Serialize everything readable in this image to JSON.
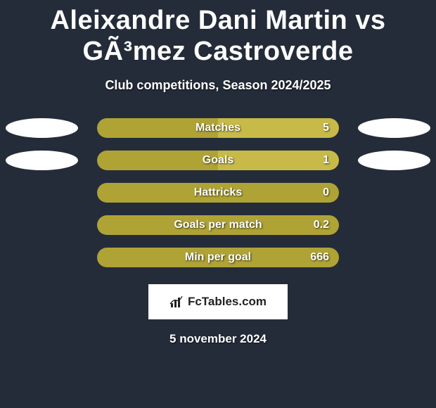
{
  "title": "Aleixandre Dani Martin vs GÃ³mez Castroverde",
  "subtitle": "Club competitions, Season 2024/2025",
  "date": "5 november 2024",
  "logo_text": "FcTables.com",
  "colors": {
    "background": "#242c3a",
    "ellipse": "#ffffff",
    "bar_left": "#afa335",
    "bar_right": "#c7ba48",
    "bar_full": "#c7ba48",
    "text": "#ffffff",
    "logo_bg": "#ffffff",
    "logo_text": "#222222"
  },
  "stats": [
    {
      "label": "Matches",
      "value_right": "5",
      "show_ellipses": true,
      "left_pct": 50,
      "right_pct": 50,
      "left_color": "#afa335",
      "right_color": "#c7ba48"
    },
    {
      "label": "Goals",
      "value_right": "1",
      "show_ellipses": true,
      "left_pct": 50,
      "right_pct": 50,
      "left_color": "#afa335",
      "right_color": "#c7ba48"
    },
    {
      "label": "Hattricks",
      "value_right": "0",
      "show_ellipses": false,
      "left_pct": 100,
      "right_pct": 0,
      "left_color": "#afa335",
      "right_color": "#c7ba48"
    },
    {
      "label": "Goals per match",
      "value_right": "0.2",
      "show_ellipses": false,
      "left_pct": 100,
      "right_pct": 0,
      "left_color": "#afa335",
      "right_color": "#c7ba48"
    },
    {
      "label": "Min per goal",
      "value_right": "666",
      "show_ellipses": false,
      "left_pct": 100,
      "right_pct": 0,
      "left_color": "#afa335",
      "right_color": "#c7ba48"
    }
  ]
}
